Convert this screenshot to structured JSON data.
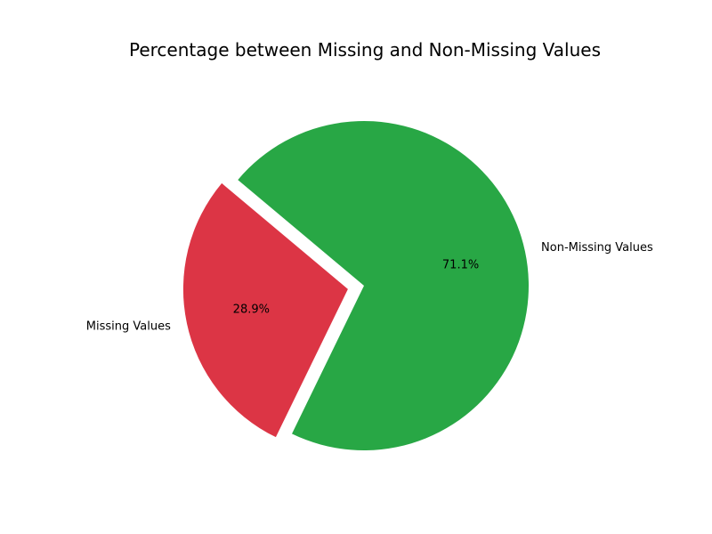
{
  "chart_data": {
    "type": "pie",
    "title": "Percentage between Missing and Non-Missing Values",
    "slices": [
      {
        "label": "Missing Values",
        "percent_label": "28.9%",
        "value": 28.9,
        "color": "#dc3545",
        "exploded": true
      },
      {
        "label": "Non-Missing Values",
        "percent_label": "71.1%",
        "value": 71.1,
        "color": "#28a745",
        "exploded": false
      }
    ],
    "start_angle_deg": 140,
    "direction": "counterclockwise",
    "legend": "none"
  }
}
